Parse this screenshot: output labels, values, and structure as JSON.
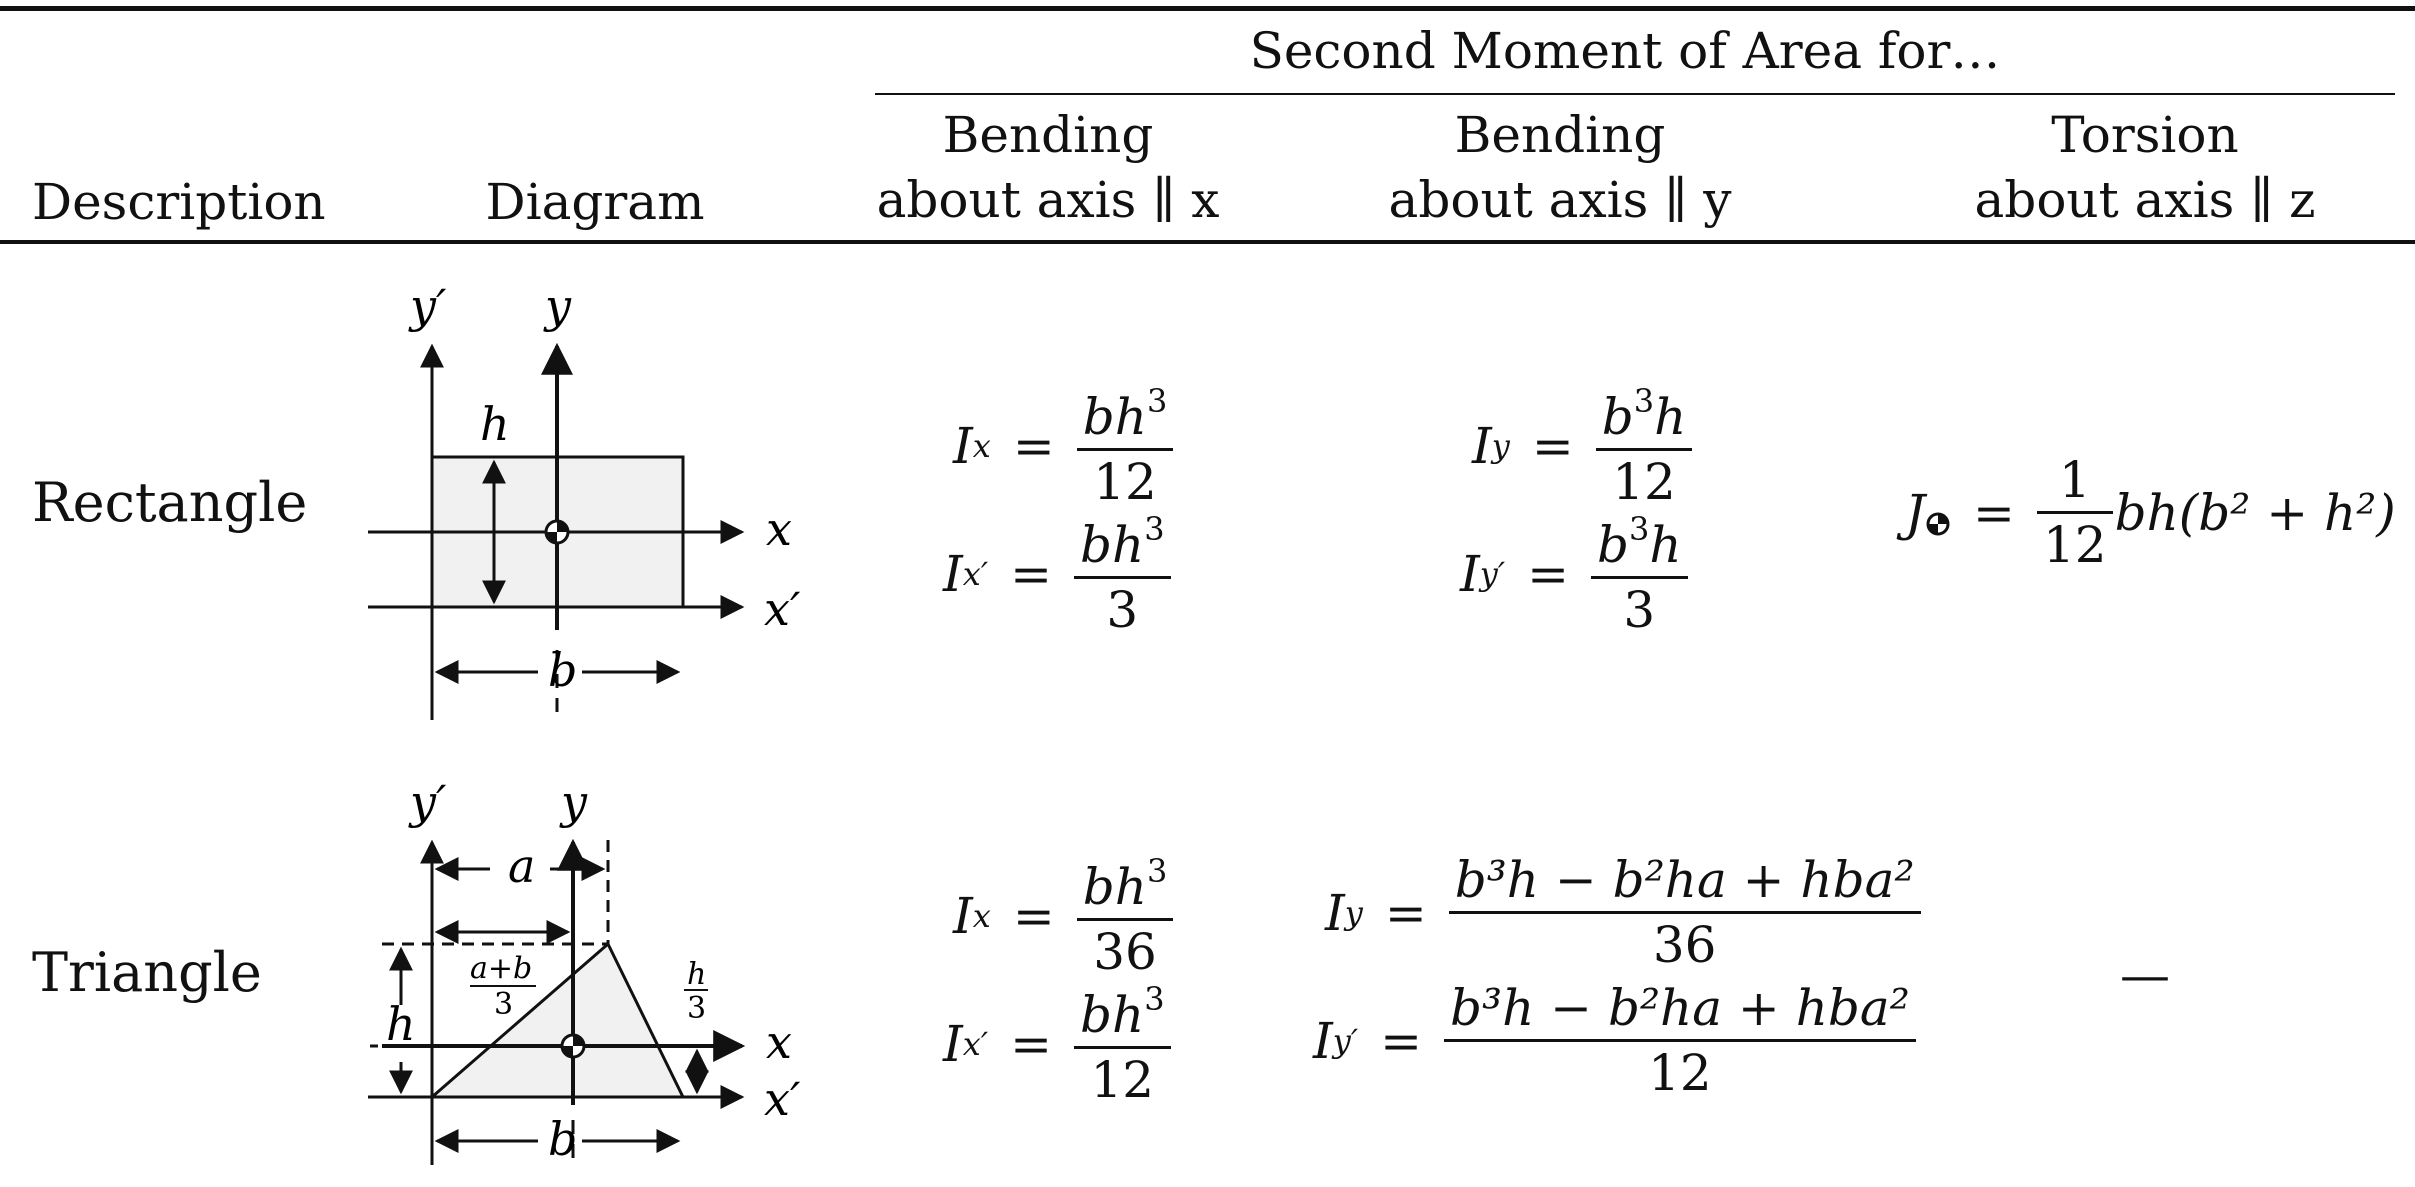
{
  "header": {
    "group_title": "Second Moment of Area for…",
    "col_description": "Description",
    "col_diagram": "Diagram",
    "col_bx_line1": "Bending",
    "col_bx_line2": "about axis ∥ x",
    "col_by_line1": "Bending",
    "col_by_line2": "about axis ∥ y",
    "col_tz_line1": "Torsion",
    "col_tz_line2": "about axis ∥ z"
  },
  "rows": [
    {
      "label": "Rectangle",
      "ix": {
        "lhs": "I",
        "sub": "x",
        "num": "bh",
        "num_sup": "3",
        "den": "12"
      },
      "ix2": {
        "lhs": "I",
        "sub": "x′",
        "num": "bh",
        "num_sup": "3",
        "den": "3"
      },
      "iy": {
        "lhs": "I",
        "sub": "y",
        "num": "b",
        "num_sup": "3",
        "num_tail": "h",
        "den": "12"
      },
      "iy2": {
        "lhs": "I",
        "sub": "y′",
        "num": "b",
        "num_sup": "3",
        "num_tail": "h",
        "den": "3"
      },
      "j": {
        "lhs": "J",
        "num": "1",
        "den": "12",
        "tail": "bh(b² + h²)"
      },
      "diagram": {
        "y_prime": "y′",
        "y": "y",
        "x": "x",
        "x_prime": "x′",
        "h": "h",
        "b": "b"
      }
    },
    {
      "label": "Triangle",
      "ix": {
        "lhs": "I",
        "sub": "x",
        "num": "bh",
        "num_sup": "3",
        "den": "36"
      },
      "ix2": {
        "lhs": "I",
        "sub": "x′",
        "num": "bh",
        "num_sup": "3",
        "den": "12"
      },
      "iy": {
        "lhs": "I",
        "sub": "y",
        "num": "b³h − b²ha + hba²",
        "den": "36"
      },
      "iy2": {
        "lhs": "I",
        "sub": "y′",
        "num": "b³h − b²ha + hba²",
        "den": "12"
      },
      "torsion": "—",
      "diagram": {
        "y_prime": "y′",
        "y": "y",
        "x": "x",
        "x_prime": "x′",
        "h": "h",
        "b": "b",
        "a": "a",
        "frac_ab_num": "a+b",
        "frac_ab_den": "3",
        "frac_h_num": "h",
        "frac_h_den": "3"
      }
    }
  ]
}
